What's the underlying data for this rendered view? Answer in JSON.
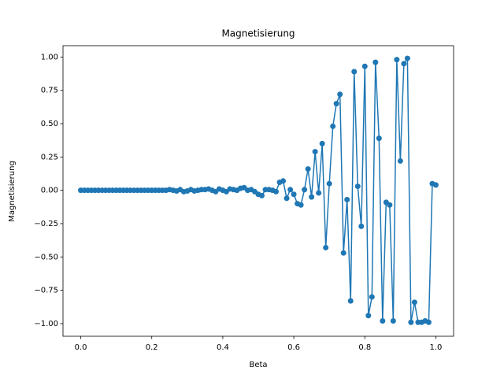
{
  "chart_data": {
    "type": "line",
    "title": "Magnetisierung",
    "x_label": "Beta",
    "y_label": "Magnetisierung",
    "x": [
      0,
      0.01,
      0.02,
      0.03,
      0.04,
      0.05,
      0.06,
      0.07,
      0.08,
      0.09,
      0.1,
      0.11,
      0.12,
      0.13,
      0.14,
      0.15,
      0.16,
      0.17,
      0.18,
      0.19,
      0.2,
      0.21,
      0.22,
      0.23,
      0.24,
      0.25,
      0.26,
      0.27,
      0.28,
      0.29,
      0.3,
      0.31,
      0.32,
      0.33,
      0.34,
      0.35,
      0.36,
      0.37,
      0.38,
      0.39,
      0.4,
      0.41,
      0.42,
      0.43,
      0.44,
      0.45,
      0.46,
      0.47,
      0.48,
      0.49,
      0.5,
      0.51,
      0.52,
      0.53,
      0.54,
      0.55,
      0.56,
      0.57,
      0.58,
      0.59,
      0.6,
      0.61,
      0.62,
      0.63,
      0.64,
      0.65,
      0.66,
      0.67,
      0.68,
      0.69,
      0.7,
      0.71,
      0.72,
      0.73,
      0.74,
      0.75,
      0.76,
      0.77,
      0.78,
      0.79,
      0.8,
      0.81,
      0.82,
      0.83,
      0.84,
      0.85,
      0.86,
      0.87,
      0.88,
      0.89,
      0.9,
      0.91,
      0.92,
      0.93,
      0.94,
      0.95,
      0.96,
      0.97,
      0.98,
      0.99,
      1
    ],
    "series": [
      {
        "color": "#1f77b4",
        "values": [
          0,
          0,
          0,
          0,
          0,
          0,
          0,
          0,
          0,
          0,
          0,
          0,
          0,
          0,
          0,
          0,
          0,
          0,
          0,
          0,
          0,
          0,
          0,
          0,
          0,
          0.005,
          0,
          -0.005,
          0.005,
          -0.01,
          -0.005,
          0.005,
          -0.005,
          0,
          0.005,
          0.005,
          0.01,
          0,
          -0.01,
          0.01,
          0,
          -0.01,
          0.01,
          0.005,
          0,
          0.015,
          0.02,
          0,
          0.005,
          -0.01,
          -0.03,
          -0.04,
          0.005,
          0.005,
          0,
          -0.01,
          0.06,
          0.07,
          -0.06,
          0.005,
          -0.03,
          -0.1,
          -0.11,
          0.005,
          0.16,
          -0.05,
          0.29,
          -0.02,
          0.35,
          -0.43,
          0.05,
          0.48,
          0.65,
          0.72,
          -0.47,
          -0.07,
          -0.83,
          0.89,
          0.03,
          -0.27,
          0.93,
          -0.94,
          -0.8,
          0.96,
          0.39,
          -0.98,
          -0.09,
          -0.11,
          -0.98,
          0.98,
          0.22,
          0.95,
          0.99,
          -0.99,
          -0.84,
          -0.99,
          -0.99,
          -0.98,
          -0.99,
          0.05,
          0.04
        ]
      }
    ],
    "xlim": [
      -0.05,
      1.05
    ],
    "ylim": [
      -1.095,
      1.085
    ],
    "xticks": [
      {
        "value": 0,
        "label": "0.0"
      },
      0.2,
      0.4,
      0.6,
      0.8,
      {
        "value": 1,
        "label": "1.0"
      }
    ],
    "yticks": [
      {
        "value": -1,
        "label": "−1.00"
      },
      {
        "value": -0.75,
        "label": "−0.75"
      },
      {
        "value": -0.5,
        "label": "−0.50"
      },
      {
        "value": -0.25,
        "label": "−0.25"
      },
      {
        "value": 0,
        "label": "0.00"
      },
      0.25,
      {
        "value": 0.5,
        "label": "0.50"
      },
      0.75,
      {
        "value": 1,
        "label": "1.00"
      }
    ]
  }
}
